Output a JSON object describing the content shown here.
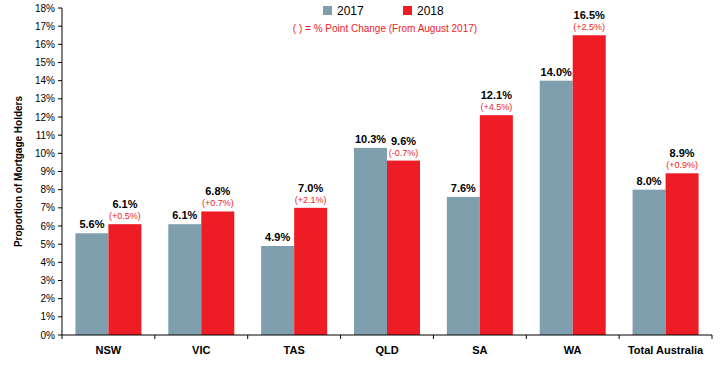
{
  "chart_data": {
    "type": "bar",
    "subtitle": "( ) = % Point Change (From August 2017)",
    "y_label": "Proportion of Mortgage Holders",
    "categories": [
      "NSW",
      "VIC",
      "TAS",
      "QLD",
      "SA",
      "WA",
      "Total Australia"
    ],
    "series": [
      {
        "name": "2017",
        "color": "#7f9fae",
        "values": [
          5.6,
          6.1,
          4.9,
          10.3,
          7.6,
          14.0,
          8.0
        ],
        "value_labels": [
          "5.6%",
          "6.1%",
          "4.9%",
          "10.3%",
          "7.6%",
          "14.0%",
          "8.0%"
        ]
      },
      {
        "name": "2018",
        "color": "#ee1c25",
        "values": [
          6.1,
          6.8,
          7.0,
          9.6,
          12.1,
          16.5,
          8.9
        ],
        "value_labels": [
          "6.1%",
          "6.8%",
          "7.0%",
          "9.6%",
          "12.1%",
          "16.5%",
          "8.9%"
        ],
        "change_labels": [
          "(+0.5%)",
          "(+0.7%)",
          "(+2.1%)",
          "(-0.7%)",
          "(+4.5%)",
          "(+2.5%)",
          "(+0.9%)"
        ]
      }
    ],
    "ylim": [
      0,
      18
    ],
    "yticks": [
      {
        "value": 0,
        "label": "0%"
      },
      {
        "value": 1,
        "label": "1%"
      },
      {
        "value": 2,
        "label": "2%"
      },
      {
        "value": 3,
        "label": "3%"
      },
      {
        "value": 4,
        "label": "4%"
      },
      {
        "value": 5,
        "label": "5%"
      },
      {
        "value": 6,
        "label": "6%"
      },
      {
        "value": 7,
        "label": "7%"
      },
      {
        "value": 8,
        "label": "8%"
      },
      {
        "value": 9,
        "label": "9%"
      },
      {
        "value": 10,
        "label": "10%"
      },
      {
        "value": 11,
        "label": "11%"
      },
      {
        "value": 12,
        "label": "12%"
      },
      {
        "value": 13,
        "label": "13%"
      },
      {
        "value": 14,
        "label": "14%"
      },
      {
        "value": 15,
        "label": "15%"
      },
      {
        "value": 16,
        "label": "16%"
      },
      {
        "value": 17,
        "label": "17%"
      },
      {
        "value": 18,
        "label": "18%"
      }
    ],
    "grid": false,
    "data_labels": true,
    "legend": "top"
  }
}
